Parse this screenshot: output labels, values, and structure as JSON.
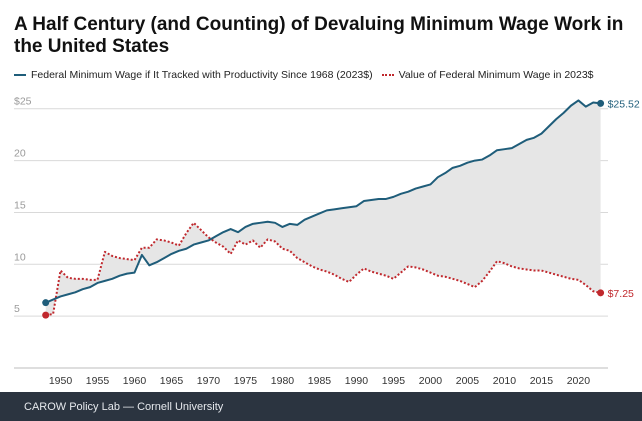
{
  "title": "A Half Century (and Counting) of Devaluing Minimum Wage Work in the United States",
  "legend": {
    "productivity": "Federal Minimum Wage if It Tracked with Productivity Since 1968 (2023$)",
    "actual": "Value of Federal Minimum Wage in 2023$"
  },
  "footer": "CAROW Policy Lab — Cornell University",
  "colors": {
    "productivity": "#1f5d7a",
    "actual": "#c0282d",
    "fill": "#e6e6e6",
    "grid": "#d9d9d9"
  },
  "chart_data": {
    "type": "line",
    "title": "A Half Century (and Counting) of Devaluing Minimum Wage Work in the United States",
    "xlabel": "",
    "ylabel": "",
    "xlim": [
      1947.5,
      2024
    ],
    "ylim": [
      0,
      27
    ],
    "xticks": [
      1950,
      1955,
      1960,
      1965,
      1970,
      1975,
      1980,
      1985,
      1990,
      1995,
      2000,
      2005,
      2010,
      2015,
      2020
    ],
    "yticks": [
      0,
      5,
      10,
      15,
      20,
      25
    ],
    "ytick_labels": [
      "",
      "5",
      "10",
      "15",
      "20",
      "$25"
    ],
    "annotations": {
      "productivity_end": "$25.52",
      "actual_end": "$7.25"
    },
    "series": [
      {
        "name": "Federal Minimum Wage if It Tracked with Productivity Since 1968 (2023$)",
        "style": "solid",
        "x": [
          1948,
          1949,
          1950,
          1951,
          1952,
          1953,
          1954,
          1955,
          1956,
          1957,
          1958,
          1959,
          1960,
          1961,
          1962,
          1963,
          1964,
          1965,
          1966,
          1967,
          1968,
          1969,
          1970,
          1971,
          1972,
          1973,
          1974,
          1975,
          1976,
          1977,
          1978,
          1979,
          1980,
          1981,
          1982,
          1983,
          1984,
          1985,
          1986,
          1987,
          1988,
          1989,
          1990,
          1991,
          1992,
          1993,
          1994,
          1995,
          1996,
          1997,
          1998,
          1999,
          2000,
          2001,
          2002,
          2003,
          2004,
          2005,
          2006,
          2007,
          2008,
          2009,
          2010,
          2011,
          2012,
          2013,
          2014,
          2015,
          2016,
          2017,
          2018,
          2019,
          2020,
          2021,
          2022,
          2023
        ],
        "values": [
          6.3,
          6.6,
          6.9,
          7.1,
          7.3,
          7.6,
          7.8,
          8.2,
          8.4,
          8.6,
          8.9,
          9.1,
          9.2,
          10.9,
          9.9,
          10.2,
          10.6,
          11.0,
          11.3,
          11.5,
          11.9,
          12.1,
          12.3,
          12.7,
          13.1,
          13.4,
          13.1,
          13.6,
          13.9,
          14.0,
          14.1,
          14.0,
          13.6,
          13.9,
          13.8,
          14.3,
          14.6,
          14.9,
          15.2,
          15.3,
          15.4,
          15.5,
          15.6,
          16.1,
          16.2,
          16.3,
          16.3,
          16.5,
          16.8,
          17.0,
          17.3,
          17.5,
          17.7,
          18.4,
          18.8,
          19.3,
          19.5,
          19.8,
          20.0,
          20.1,
          20.5,
          21.0,
          21.1,
          21.2,
          21.6,
          22.0,
          22.2,
          22.6,
          23.3,
          24.0,
          24.6,
          25.3,
          25.8,
          25.2,
          25.6,
          25.52
        ]
      },
      {
        "name": "Value of Federal Minimum Wage in 2023$",
        "style": "dotted",
        "x": [
          1948,
          1949,
          1950,
          1951,
          1952,
          1953,
          1954,
          1955,
          1956,
          1957,
          1958,
          1959,
          1960,
          1961,
          1962,
          1963,
          1964,
          1965,
          1966,
          1967,
          1968,
          1969,
          1970,
          1971,
          1972,
          1973,
          1974,
          1975,
          1976,
          1977,
          1978,
          1979,
          1980,
          1981,
          1982,
          1983,
          1984,
          1985,
          1986,
          1987,
          1988,
          1989,
          1990,
          1991,
          1992,
          1993,
          1994,
          1995,
          1996,
          1997,
          1998,
          1999,
          2000,
          2001,
          2002,
          2003,
          2004,
          2005,
          2006,
          2007,
          2008,
          2009,
          2010,
          2011,
          2012,
          2013,
          2014,
          2015,
          2016,
          2017,
          2018,
          2019,
          2020,
          2021,
          2022,
          2023
        ],
        "values": [
          5.1,
          5.2,
          9.4,
          8.7,
          8.6,
          8.6,
          8.5,
          8.5,
          11.2,
          10.8,
          10.6,
          10.5,
          10.4,
          11.6,
          11.6,
          12.4,
          12.3,
          12.1,
          11.8,
          13.0,
          14.0,
          13.3,
          12.6,
          12.1,
          11.7,
          11.0,
          12.3,
          11.9,
          12.3,
          11.6,
          12.4,
          12.2,
          11.5,
          11.3,
          10.6,
          10.2,
          9.8,
          9.5,
          9.3,
          9.0,
          8.6,
          8.3,
          9.0,
          9.6,
          9.3,
          9.1,
          8.9,
          8.6,
          9.2,
          9.8,
          9.7,
          9.5,
          9.2,
          8.9,
          8.8,
          8.6,
          8.4,
          8.1,
          7.8,
          8.4,
          9.3,
          10.3,
          10.1,
          9.8,
          9.6,
          9.5,
          9.4,
          9.4,
          9.2,
          9.0,
          8.8,
          8.6,
          8.5,
          8.0,
          7.4,
          7.25
        ]
      }
    ]
  }
}
